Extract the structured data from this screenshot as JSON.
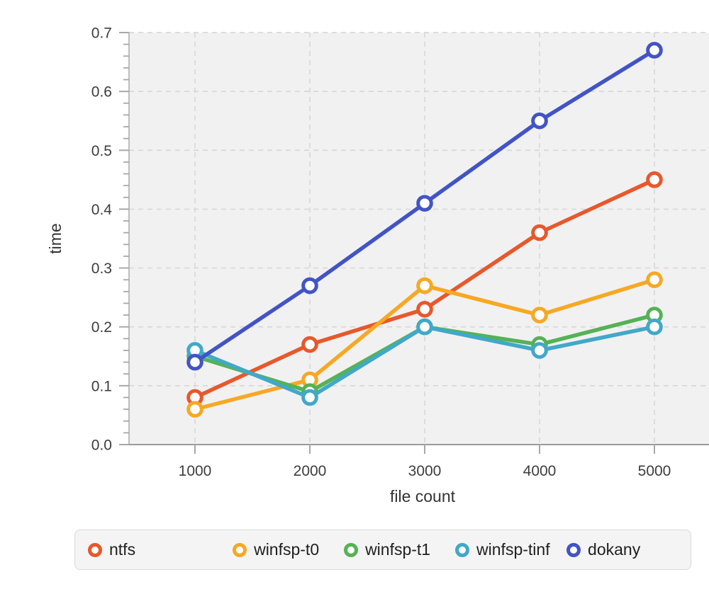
{
  "chart_data": {
    "type": "line",
    "title": "",
    "x_label": "file count",
    "y_label": "time",
    "x": [
      1000,
      2000,
      3000,
      4000,
      5000
    ],
    "x_ticks": [
      1000,
      2000,
      3000,
      4000,
      5000
    ],
    "y_ticks": [
      0.0,
      0.1,
      0.2,
      0.3,
      0.4,
      0.5,
      0.6,
      0.7
    ],
    "ylim": [
      0.0,
      0.7
    ],
    "y_minor_step": 0.02,
    "grid": true,
    "legend_position": "bottom",
    "marker_style": "open-circle",
    "series": [
      {
        "name": "ntfs",
        "color": "#E8582B",
        "values": [
          0.08,
          0.17,
          0.23,
          0.36,
          0.45
        ]
      },
      {
        "name": "winfsp-t0",
        "color": "#F7A823",
        "values": [
          0.06,
          0.11,
          0.27,
          0.22,
          0.28
        ]
      },
      {
        "name": "winfsp-t1",
        "color": "#55B255",
        "values": [
          0.15,
          0.09,
          0.2,
          0.17,
          0.22
        ]
      },
      {
        "name": "winfsp-tinf",
        "color": "#41A8C8",
        "values": [
          0.16,
          0.08,
          0.2,
          0.16,
          0.2
        ]
      },
      {
        "name": "dokany",
        "color": "#4254C5",
        "values": [
          0.14,
          0.27,
          0.41,
          0.55,
          0.67
        ]
      }
    ],
    "colors": {
      "plot_bg": "#f1f1f2",
      "grid": "#d8d8d8",
      "y_axis": "#bdbdbd",
      "x_axis": "#9b9b9b",
      "tick": "#a8a8a8",
      "tick_label": "#3d3d3d",
      "axis_title": "#333333",
      "legend_bg": "#f4f4f5",
      "legend_border": "#d9d9d9",
      "legend_text": "#1f1f1f"
    }
  }
}
